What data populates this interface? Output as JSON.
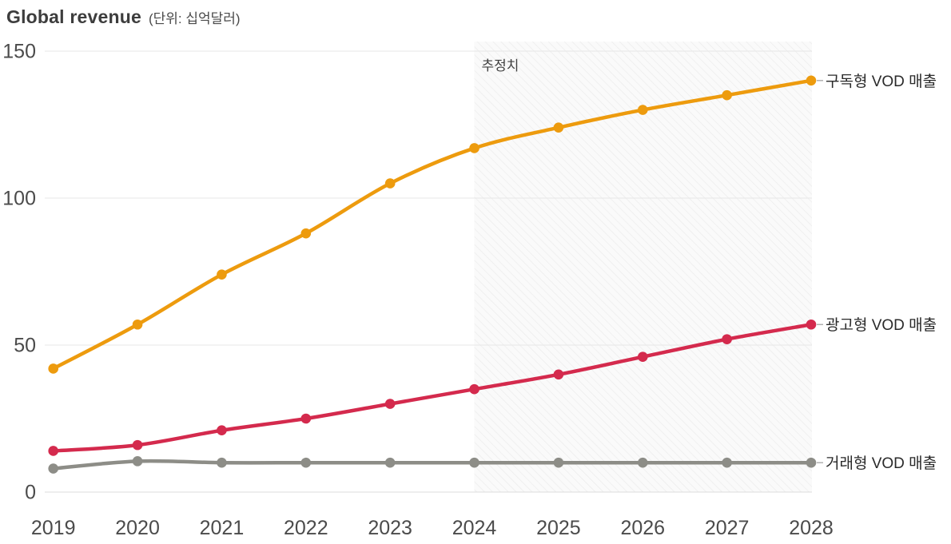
{
  "page": {
    "title": "Global revenue",
    "subtitle": "(단위: 십억달러)"
  },
  "chart_data": {
    "type": "line",
    "x": [
      2019,
      2020,
      2021,
      2022,
      2023,
      2024,
      2025,
      2026,
      2027,
      2028
    ],
    "series": [
      {
        "key": "svod",
        "name": "구독형 VOD 매출",
        "color": "#ED9B0E",
        "values": [
          42,
          57,
          74,
          88,
          105,
          117,
          124,
          130,
          135,
          140
        ]
      },
      {
        "key": "avod",
        "name": "광고형 VOD 매출",
        "color": "#D42A4D",
        "values": [
          14,
          16,
          21,
          25,
          30,
          35,
          40,
          46,
          52,
          57
        ]
      },
      {
        "key": "tvod",
        "name": "거래형 VOD 매출",
        "color": "#8D8D87",
        "values": [
          8,
          10.5,
          10,
          10,
          10,
          10,
          10,
          10,
          10,
          10
        ]
      }
    ],
    "ylim": [
      0,
      150
    ],
    "yticks": [
      0,
      50,
      100,
      150
    ],
    "xlabel": "",
    "ylabel": "",
    "grid": "horizontal-only",
    "legend_position": "right-of-line-ends",
    "estimate": {
      "label": "추정치",
      "from_x": 2024
    },
    "colors": {
      "grid": "#e7e7e7",
      "baseline": "#dcdcdc",
      "axis_text": "#4b4b4b",
      "estimate_fill": "#fafafa",
      "estimate_hatch": "#ececec",
      "estimate_text": "#3f3f3f",
      "legend_text": "#2a2a2a",
      "legend_dash": "#b0b0b0"
    }
  }
}
